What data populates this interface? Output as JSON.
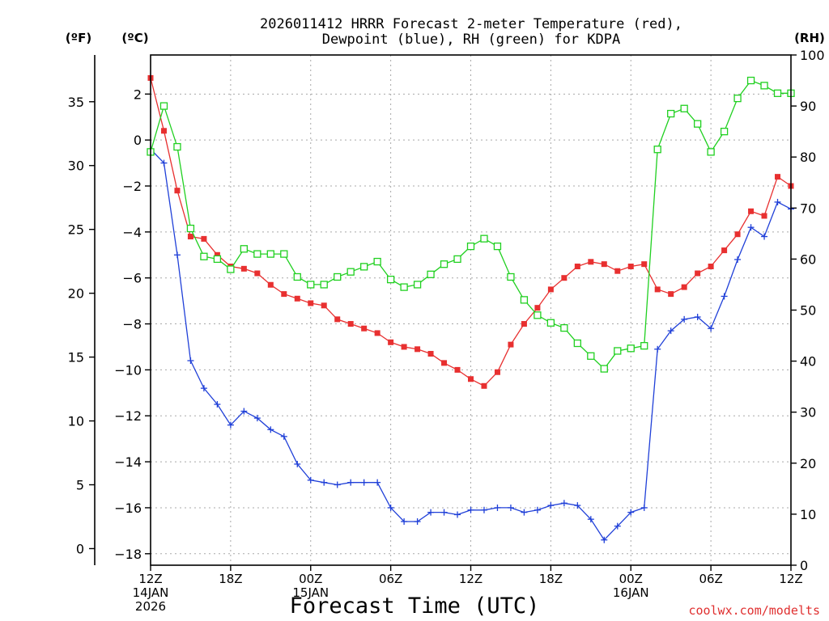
{
  "chart_data": {
    "type": "line",
    "title": [
      "2026011412 HRRR Forecast 2-meter Temperature (red),",
      "Dewpoint (blue), RH (green) for KDPA"
    ],
    "xlabel": "Forecast Time (UTC)",
    "credit": "coolwx.com/modelts",
    "units": {
      "fahrenheit": "(ºF)",
      "celsius": "(ºC)",
      "rh": "(RH)"
    },
    "x_range": [
      0,
      48
    ],
    "x_ticks": [
      {
        "x": 0,
        "lines": [
          "12Z",
          "14JAN",
          "2026"
        ]
      },
      {
        "x": 6,
        "lines": [
          "18Z"
        ]
      },
      {
        "x": 12,
        "lines": [
          "00Z",
          "15JAN"
        ]
      },
      {
        "x": 18,
        "lines": [
          "06Z"
        ]
      },
      {
        "x": 24,
        "lines": [
          "12Z"
        ]
      },
      {
        "x": 30,
        "lines": [
          "18Z"
        ]
      },
      {
        "x": 36,
        "lines": [
          "00Z",
          "16JAN"
        ]
      },
      {
        "x": 42,
        "lines": [
          "06Z"
        ]
      },
      {
        "x": 48,
        "lines": [
          "12Z"
        ]
      }
    ],
    "celsius_axis": {
      "range": [
        -18.5,
        3.7
      ],
      "ticks": [
        2,
        0,
        -2,
        -4,
        -6,
        -8,
        -10,
        -12,
        -14,
        -16,
        -18
      ]
    },
    "fahrenheit_axis": {
      "range": [
        -1.3,
        38.66
      ],
      "ticks": [
        35,
        30,
        25,
        20,
        15,
        10,
        5,
        0
      ]
    },
    "rh_axis": {
      "range": [
        0,
        100
      ],
      "ticks": [
        100,
        90,
        80,
        70,
        60,
        50,
        40,
        30,
        20,
        10,
        0
      ]
    },
    "series": [
      {
        "name": "2-meter Temperature",
        "axis": "celsius",
        "color": "#e83030",
        "marker": "filled-square",
        "values": [
          2.7,
          0.4,
          -2.2,
          -4.2,
          -4.3,
          -5.0,
          -5.5,
          -5.6,
          -5.8,
          -6.3,
          -6.7,
          -6.9,
          -7.1,
          -7.2,
          -7.8,
          -8.0,
          -8.2,
          -8.4,
          -8.8,
          -9.0,
          -9.1,
          -9.3,
          -9.7,
          -10.0,
          -10.4,
          -10.7,
          -10.1,
          -8.9,
          -8.0,
          -7.3,
          -6.5,
          -6.0,
          -5.5,
          -5.3,
          -5.4,
          -5.7,
          -5.5,
          -5.4,
          -6.5,
          -6.7,
          -6.4,
          -5.8,
          -5.5,
          -4.8,
          -4.1,
          -3.1,
          -3.3,
          -1.6,
          -2.0
        ]
      },
      {
        "name": "Dewpoint",
        "axis": "celsius",
        "color": "#2040d8",
        "marker": "plus",
        "values": [
          -0.4,
          -1.0,
          -5.0,
          -9.6,
          -10.8,
          -11.5,
          -12.4,
          -11.8,
          -12.1,
          -12.6,
          -12.9,
          -14.1,
          -14.8,
          -14.9,
          -15.0,
          -14.9,
          -14.9,
          -14.9,
          -16.0,
          -16.6,
          -16.6,
          -16.2,
          -16.2,
          -16.3,
          -16.1,
          -16.1,
          -16.0,
          -16.0,
          -16.2,
          -16.1,
          -15.9,
          -15.8,
          -15.9,
          -16.5,
          -17.4,
          -16.8,
          -16.2,
          -16.0,
          -9.1,
          -8.3,
          -7.8,
          -7.7,
          -8.2,
          -6.8,
          -5.2,
          -3.8,
          -4.2,
          -2.7,
          -3.0
        ]
      },
      {
        "name": "RH",
        "axis": "rh",
        "color": "#20d020",
        "marker": "open-square",
        "values": [
          81,
          90,
          82,
          66,
          60.5,
          60,
          58,
          62,
          61,
          61,
          61,
          56.5,
          55,
          55,
          56.5,
          57.5,
          58.5,
          59.5,
          56,
          54.5,
          55,
          57,
          59,
          60,
          62.5,
          64,
          62.5,
          56.5,
          52,
          49,
          47.5,
          46.5,
          43.5,
          41,
          38.5,
          42,
          42.5,
          43,
          81.5,
          88.5,
          89.5,
          86.5,
          81,
          85,
          91.5,
          95,
          94,
          92.5,
          92.5
        ]
      }
    ]
  }
}
